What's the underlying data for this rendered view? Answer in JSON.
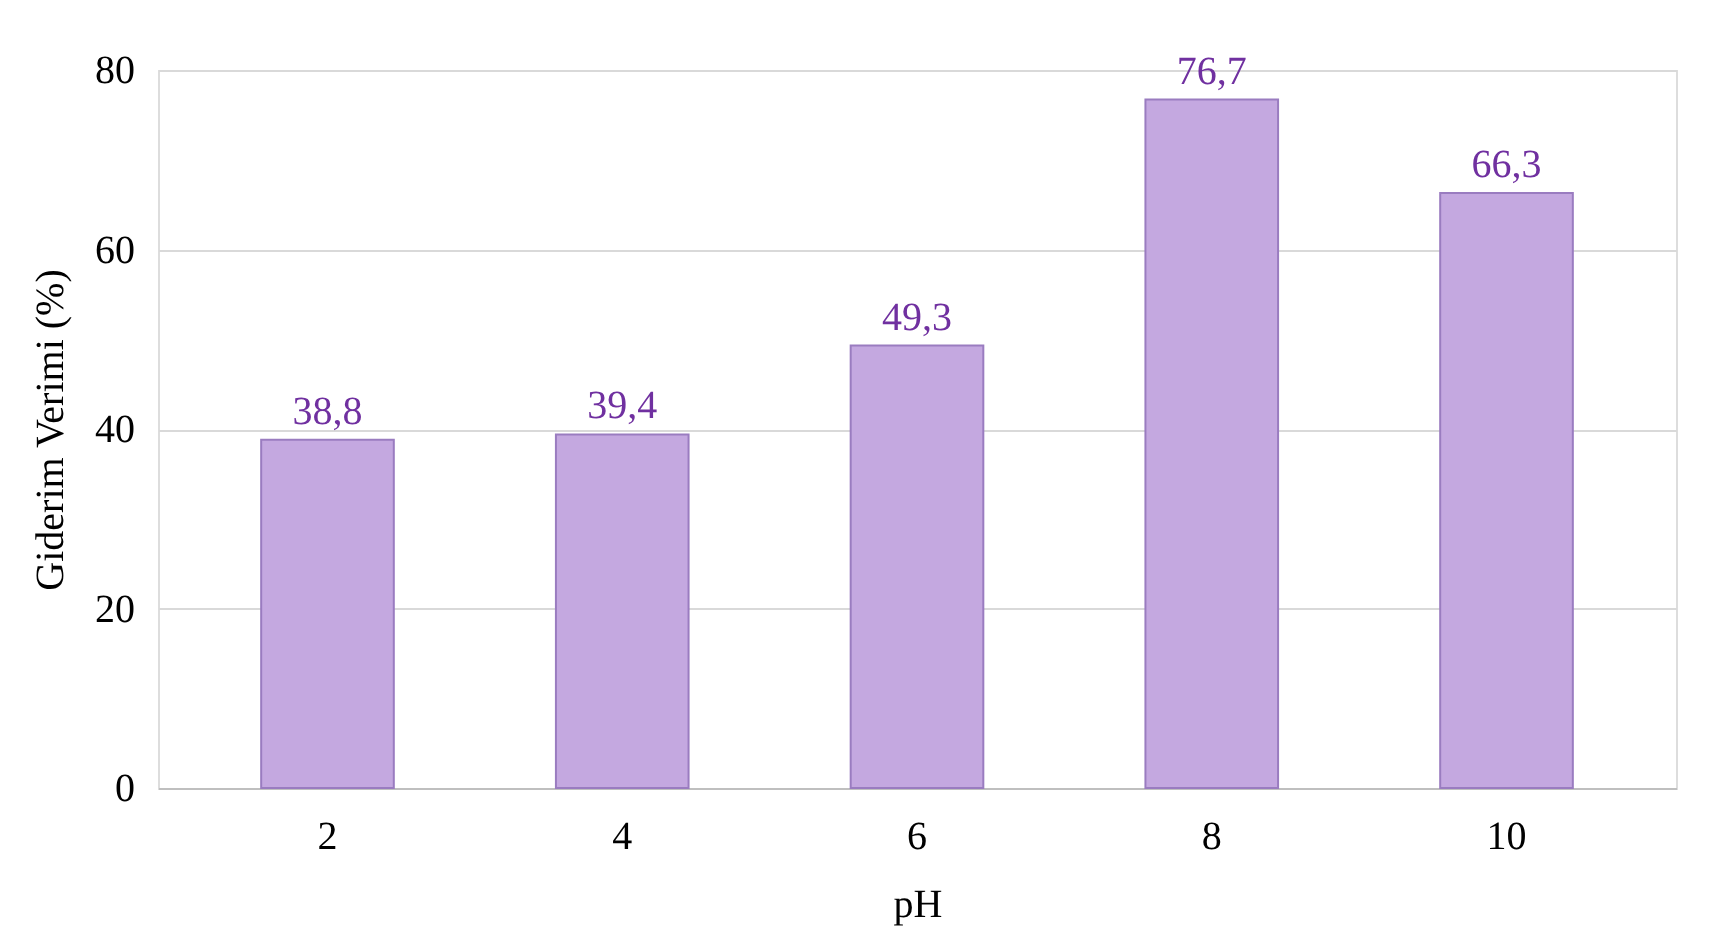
{
  "chart_data": {
    "type": "bar",
    "xlabel": "pH",
    "ylabel": "Giderim Verimi (%)",
    "categories": [
      "2",
      "4",
      "6",
      "8",
      "10"
    ],
    "series": [
      {
        "color": "#c4a8e0",
        "values": [
          38.8,
          39.4,
          49.3,
          76.7,
          66.3
        ],
        "value_labels": [
          "38,8",
          "39,4",
          "49,3",
          "76,7",
          "66,3"
        ]
      }
    ],
    "ylim": [
      0,
      80
    ],
    "yticks": [
      0,
      20,
      40,
      60,
      80
    ],
    "grid": "y"
  }
}
